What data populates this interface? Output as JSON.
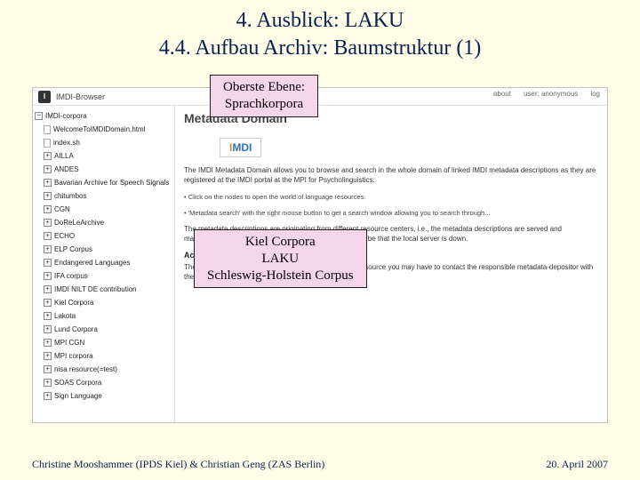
{
  "title": {
    "line1": "4. Ausblick: LAKU",
    "line2": "4.4. Aufbau Archiv: Baumstruktur (1)"
  },
  "callout1": {
    "line1": "Oberste Ebene:",
    "line2": "Sprachkorpora"
  },
  "callout2": {
    "line1": "Kiel Corpora",
    "line2": "LAKU",
    "line3": "Schleswig-Holstein Corpus"
  },
  "browser": {
    "appTitle": "IMDI-Browser",
    "nav": {
      "about": "about",
      "user": "user: anonymous",
      "log": "log"
    },
    "tree": [
      {
        "type": "node",
        "label": "IMDI-corpora"
      },
      {
        "type": "doc",
        "label": "WelcomeToIMDIDomain.html"
      },
      {
        "type": "doc",
        "label": "index.sh"
      },
      {
        "type": "node",
        "label": "AILLA"
      },
      {
        "type": "node",
        "label": "ANDES"
      },
      {
        "type": "node",
        "label": "Bavarian Archive for Speech Signals"
      },
      {
        "type": "node",
        "label": "chitumbos"
      },
      {
        "type": "node",
        "label": "CGN"
      },
      {
        "type": "node",
        "label": "DoReLeArchive"
      },
      {
        "type": "node",
        "label": "ECHO"
      },
      {
        "type": "node",
        "label": "ELP Corpus"
      },
      {
        "type": "node",
        "label": "Endangered Languages"
      },
      {
        "type": "node",
        "label": "IFA corpus"
      },
      {
        "type": "node",
        "label": "IMDI NILT DE contribution"
      },
      {
        "type": "node",
        "label": "Kiel Corpora"
      },
      {
        "type": "node",
        "label": "Lakota"
      },
      {
        "type": "node",
        "label": "Lund Corpora"
      },
      {
        "type": "node",
        "label": "MPI CGN"
      },
      {
        "type": "node",
        "label": "MPI corpora"
      },
      {
        "type": "node",
        "label": "nisa resource(=test)"
      },
      {
        "type": "node",
        "label": "SOAS Corpora"
      },
      {
        "type": "node",
        "label": "Sign Language"
      }
    ],
    "content": {
      "heading": "Metadata Domain",
      "logo": {
        "i": "I",
        "m": "MDI"
      },
      "p1": "The IMDI Metadata Domain allows you to browse and search in the whole domain of linked IMDI metadata descriptions as they are registered at the IMDI portal at the MPI for Psycholinguistics.",
      "p2a": "• Click on the nodes to open the world of language resources.",
      "p2b": "• 'Metadata search' with the right mouse button to get a search window allowing you to search through...",
      "p3": "The metadata descriptions are originating from different resource centers, i.e., the metadata descriptions are served and maintained by these centers. If no response comes it may be that the local server is down.",
      "h3": "Access to Resources",
      "p4": "The access to metadata is open. However, to access a resource you may have to contact the responsible metadata-depositor with the help of metadata-depositors."
    }
  },
  "footer": {
    "left": "Christine Mooshammer (IPDS Kiel) & Christian Geng (ZAS Berlin)",
    "right": "20. April 2007"
  },
  "colors": {
    "slideBg": "#fffce8",
    "titleColor": "#0a2050",
    "calloutBg": "#f4d6e8",
    "calloutBorder": "#222222"
  }
}
